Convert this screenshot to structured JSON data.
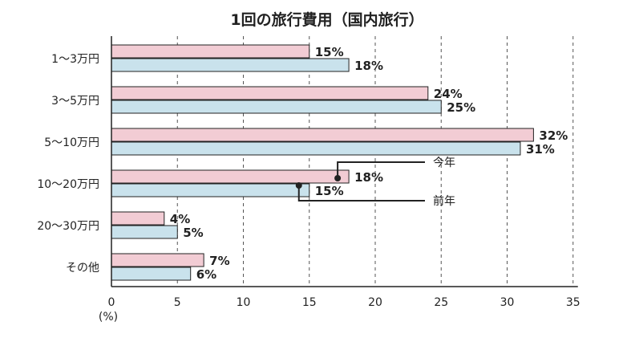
{
  "chart_data": {
    "type": "bar",
    "orientation": "horizontal",
    "title": "1回の旅行費用（国内旅行）",
    "categories": [
      "1〜3万円",
      "3〜5万円",
      "5〜10万円",
      "10〜20万円",
      "20〜30万円",
      "その他"
    ],
    "series": [
      {
        "name": "今年",
        "values": [
          15,
          24,
          32,
          18,
          4,
          7
        ],
        "color": "#f2ccd4"
      },
      {
        "name": "前年",
        "values": [
          18,
          25,
          31,
          15,
          5,
          6
        ],
        "color": "#c9e2ec"
      }
    ],
    "value_labels": {
      "今年": [
        "15%",
        "24%",
        "32%",
        "18%",
        "4%",
        "7%"
      ],
      "前年": [
        "18%",
        "25%",
        "31%",
        "15%",
        "5%",
        "6%"
      ]
    },
    "xlim": [
      0,
      35
    ],
    "xticks": [
      0,
      5,
      10,
      15,
      20,
      25,
      30,
      35
    ],
    "xunit": "(%)",
    "grid": "vertical-dashed",
    "legend_placement": "callouts on 10〜20万円 bars"
  }
}
